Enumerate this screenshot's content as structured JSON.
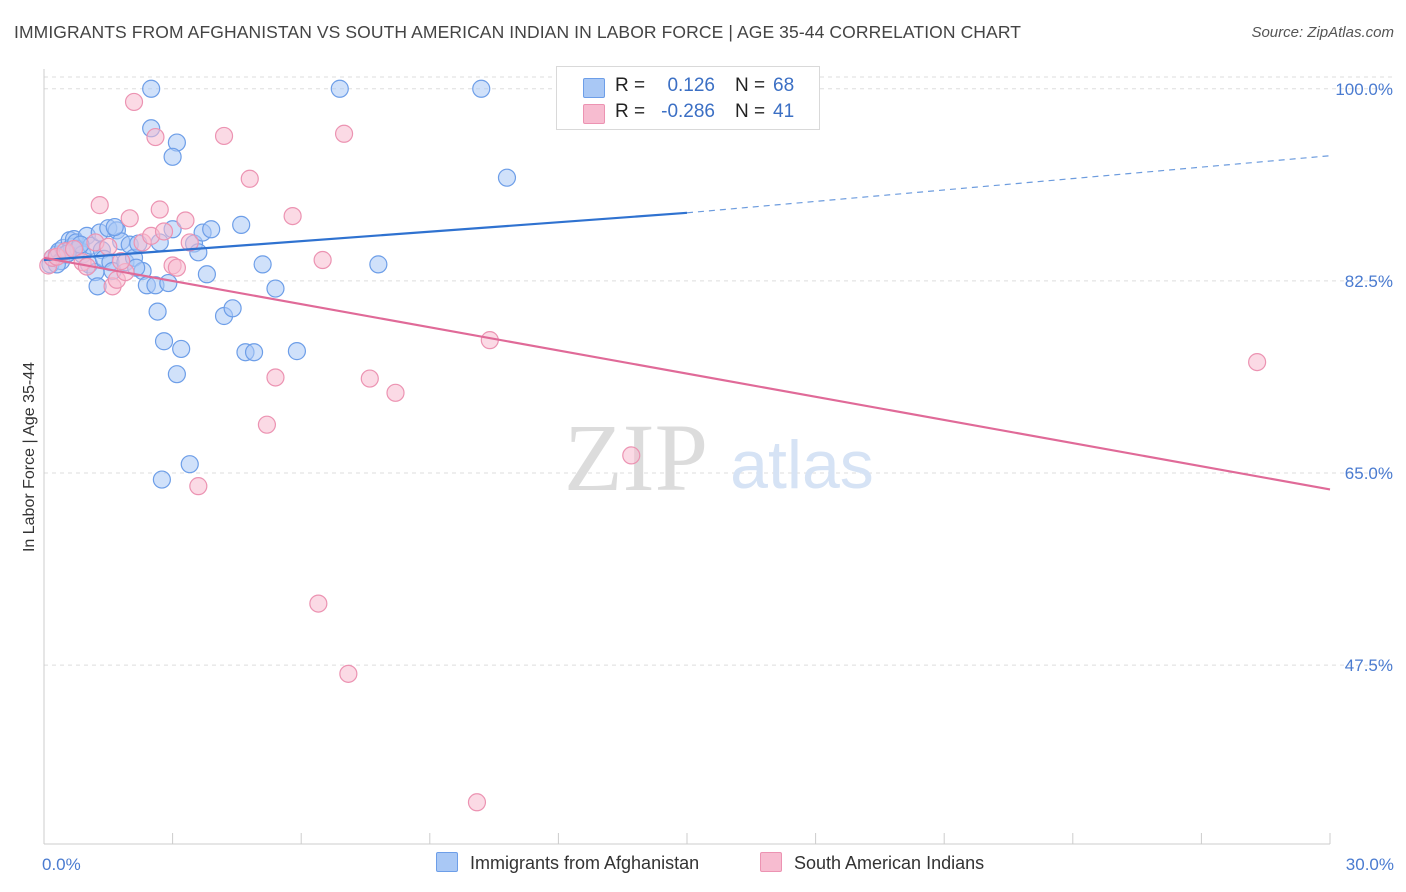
{
  "title": "IMMIGRANTS FROM AFGHANISTAN VS SOUTH AMERICAN INDIAN IN LABOR FORCE | AGE 35-44 CORRELATION CHART",
  "source": "Source: ZipAtlas.com",
  "watermark": {
    "zip": "ZIP",
    "atlas": "atlas"
  },
  "colors": {
    "blue_fill": "#a9c8f5",
    "blue_stroke": "#6d9ee8",
    "blue_line": "#2f72d0",
    "pink_fill": "#f7bcd0",
    "pink_stroke": "#ec93b2",
    "pink_line": "#e06a98",
    "axis_text": "#4a7bd0",
    "grid": "#dddddd"
  },
  "stats": [
    {
      "r_label": "R =",
      "r_value": "0.126",
      "n_label": "N =",
      "n_value": "68"
    },
    {
      "r_label": "R =",
      "r_value": "-0.286",
      "n_label": "N =",
      "n_value": "41"
    }
  ],
  "chart_data": {
    "type": "scatter",
    "xlabel": "",
    "ylabel": "In Labor Force | Age 35-44",
    "xlim": [
      0,
      30
    ],
    "ylim": [
      31.2,
      101.8
    ],
    "x_tick_labels": [
      {
        "v": 0,
        "label": "0.0%"
      },
      {
        "v": 30,
        "label": "30.0%"
      }
    ],
    "y_ticks": [
      {
        "v": 100,
        "label": "100.0%"
      },
      {
        "v": 82.5,
        "label": "82.5%"
      },
      {
        "v": 65,
        "label": "65.0%"
      },
      {
        "v": 47.5,
        "label": "47.5%"
      }
    ],
    "grid": true,
    "legend_position": "bottom",
    "series": [
      {
        "name": "Immigrants from Afghanistan",
        "color": "#a9c8f5",
        "trend": {
          "x0": 0,
          "y0": 84.4,
          "x1": 15,
          "y1": 88.7,
          "x_dash_end": 30,
          "y_dash_end": 93.9
        },
        "points": [
          [
            0.15,
            84.0
          ],
          [
            0.2,
            84.6
          ],
          [
            0.3,
            84.9
          ],
          [
            0.35,
            85.2
          ],
          [
            0.4,
            84.3
          ],
          [
            0.45,
            85.5
          ],
          [
            0.5,
            84.9
          ],
          [
            0.6,
            86.2
          ],
          [
            0.65,
            85.6
          ],
          [
            0.7,
            86.3
          ],
          [
            0.75,
            86.0
          ],
          [
            0.8,
            85.4
          ],
          [
            0.9,
            84.9
          ],
          [
            1.0,
            86.6
          ],
          [
            1.05,
            84.0
          ],
          [
            1.1,
            85.7
          ],
          [
            1.2,
            83.3
          ],
          [
            1.3,
            86.9
          ],
          [
            1.35,
            85.3
          ],
          [
            1.4,
            84.5
          ],
          [
            1.5,
            87.3
          ],
          [
            1.55,
            84.2
          ],
          [
            1.6,
            83.4
          ],
          [
            1.7,
            87.1
          ],
          [
            1.8,
            86.1
          ],
          [
            1.9,
            84.2
          ],
          [
            2.0,
            85.8
          ],
          [
            2.1,
            84.6
          ],
          [
            2.2,
            85.9
          ],
          [
            2.3,
            83.4
          ],
          [
            2.4,
            82.1
          ],
          [
            2.5,
            96.4
          ],
          [
            2.6,
            82.1
          ],
          [
            2.65,
            79.7
          ],
          [
            2.7,
            86.0
          ],
          [
            2.8,
            77.0
          ],
          [
            2.9,
            82.3
          ],
          [
            3.0,
            87.2
          ],
          [
            3.1,
            74.0
          ],
          [
            3.2,
            76.3
          ],
          [
            3.4,
            65.8
          ],
          [
            3.5,
            85.9
          ],
          [
            3.6,
            85.1
          ],
          [
            3.7,
            86.9
          ],
          [
            3.8,
            83.1
          ],
          [
            3.9,
            87.2
          ],
          [
            4.2,
            79.3
          ],
          [
            4.4,
            80.0
          ],
          [
            4.6,
            87.6
          ],
          [
            4.7,
            76.0
          ],
          [
            4.9,
            76.0
          ],
          [
            5.1,
            84.0
          ],
          [
            5.4,
            81.8
          ],
          [
            5.9,
            76.1
          ],
          [
            7.8,
            84.0
          ],
          [
            10.8,
            91.9
          ],
          [
            2.5,
            100.0
          ],
          [
            6.9,
            100.0
          ],
          [
            10.2,
            100.0
          ],
          [
            3.1,
            95.1
          ],
          [
            3.0,
            93.8
          ],
          [
            0.3,
            84.0
          ],
          [
            0.55,
            85.0
          ],
          [
            0.85,
            85.8
          ],
          [
            1.25,
            82.0
          ],
          [
            2.15,
            83.7
          ],
          [
            2.75,
            64.4
          ],
          [
            1.65,
            87.4
          ]
        ]
      },
      {
        "name": "South American Indians",
        "color": "#f7bcd0",
        "trend": {
          "x0": 0,
          "y0": 84.6,
          "x1": 30,
          "y1": 63.5
        },
        "points": [
          [
            0.1,
            83.9
          ],
          [
            0.2,
            84.6
          ],
          [
            0.3,
            84.7
          ],
          [
            0.5,
            85.2
          ],
          [
            0.7,
            85.4
          ],
          [
            0.9,
            84.2
          ],
          [
            1.0,
            83.8
          ],
          [
            1.2,
            86.0
          ],
          [
            1.3,
            89.4
          ],
          [
            1.5,
            85.6
          ],
          [
            1.6,
            82.0
          ],
          [
            1.7,
            82.6
          ],
          [
            1.9,
            83.3
          ],
          [
            2.0,
            88.2
          ],
          [
            2.1,
            98.8
          ],
          [
            2.3,
            86.0
          ],
          [
            2.5,
            86.6
          ],
          [
            2.6,
            95.6
          ],
          [
            2.7,
            89.0
          ],
          [
            2.8,
            87.0
          ],
          [
            3.0,
            83.9
          ],
          [
            3.1,
            83.7
          ],
          [
            3.3,
            88.0
          ],
          [
            3.4,
            86.0
          ],
          [
            3.6,
            63.8
          ],
          [
            4.2,
            95.7
          ],
          [
            4.8,
            91.8
          ],
          [
            5.2,
            69.4
          ],
          [
            5.4,
            73.7
          ],
          [
            5.8,
            88.4
          ],
          [
            6.4,
            53.1
          ],
          [
            6.5,
            84.4
          ],
          [
            7.0,
            95.9
          ],
          [
            7.1,
            46.7
          ],
          [
            7.6,
            73.6
          ],
          [
            8.2,
            72.3
          ],
          [
            10.1,
            35.0
          ],
          [
            10.4,
            77.1
          ],
          [
            13.7,
            66.6
          ],
          [
            28.3,
            75.1
          ],
          [
            1.8,
            84.3
          ]
        ]
      }
    ]
  }
}
